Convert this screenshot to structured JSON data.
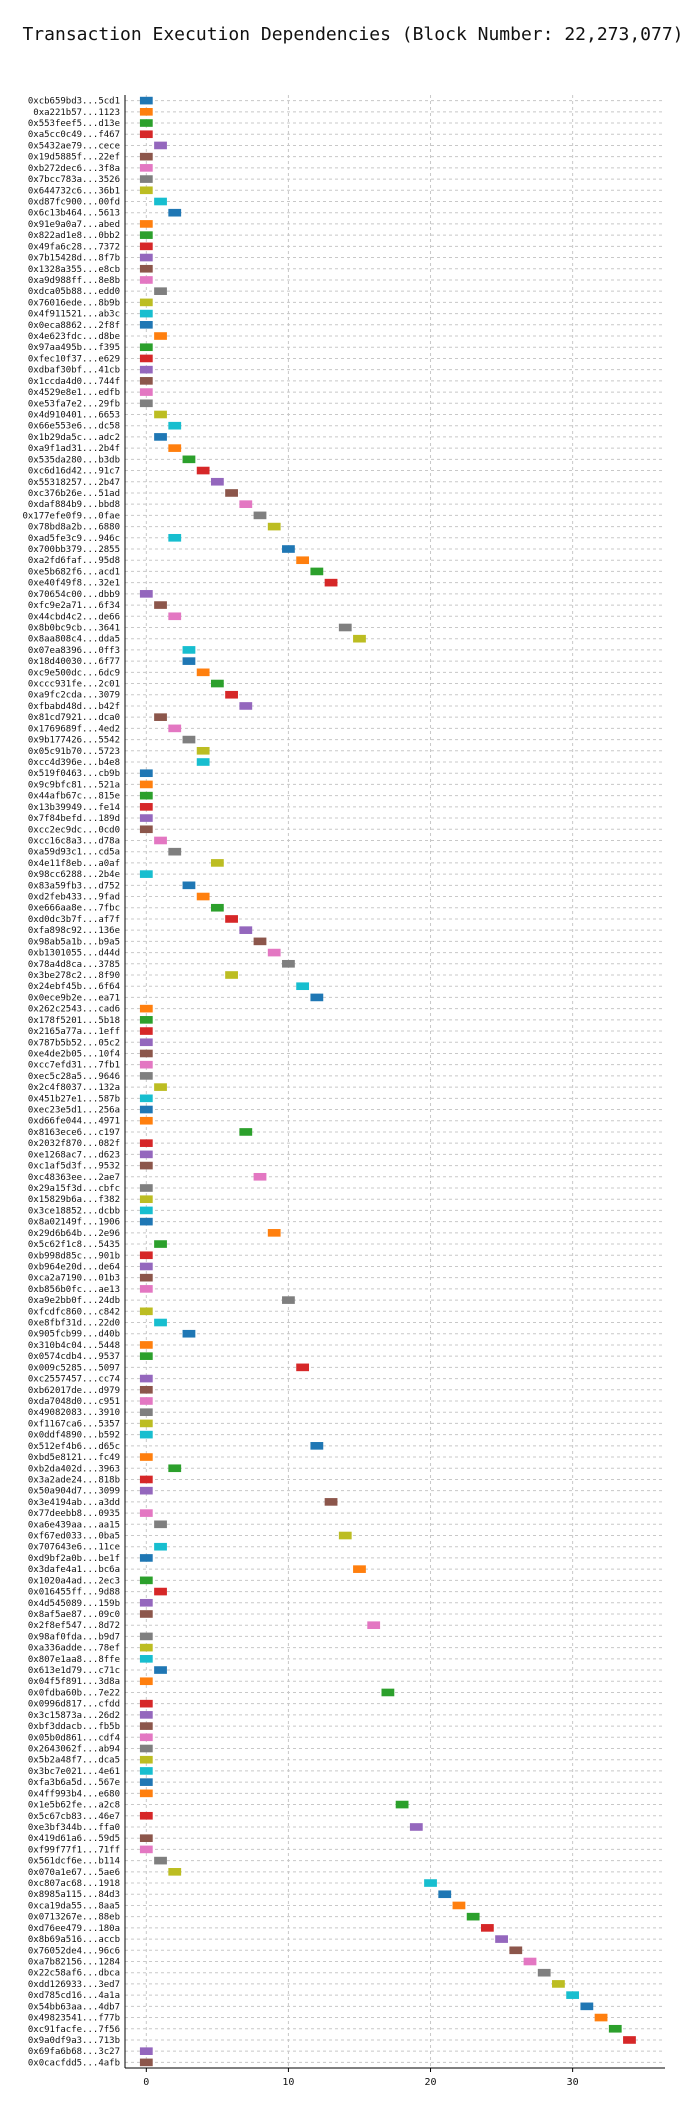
{
  "chart_data": {
    "type": "gantt",
    "title": "Transaction Execution Dependencies (Block Number: 22,273,077)",
    "xlabel": "",
    "ylabel": "",
    "xlim": [
      -1.5,
      36.5
    ],
    "xticks": [
      0,
      10,
      20,
      30
    ],
    "grid": {
      "x": true,
      "y": true,
      "style": "dashed"
    },
    "bar_width": 0.9,
    "palette": [
      "#1f77b4",
      "#ff7f0e",
      "#2ca02c",
      "#d62728",
      "#9467bd",
      "#8c564b",
      "#e377c2",
      "#7f7f7f",
      "#bcbd22",
      "#17becf"
    ],
    "transactions": [
      [
        "0xcb659bd3...5cd1",
        0,
        0
      ],
      [
        "0xa221b57...1123",
        0,
        1
      ],
      [
        "0x553feef5...d13e",
        0,
        2
      ],
      [
        "0xa5cc0c49...f467",
        0,
        3
      ],
      [
        "0x5432ae79...cece",
        1,
        4
      ],
      [
        "0x19d5885f...22ef",
        0,
        5
      ],
      [
        "0xb272dec6...3f8a",
        0,
        6
      ],
      [
        "0x7bcc783a...3526",
        0,
        7
      ],
      [
        "0x644732c6...36b1",
        0,
        8
      ],
      [
        "0xd87fc900...00fd",
        1,
        9
      ],
      [
        "0x6c13b464...5613",
        2,
        0
      ],
      [
        "0x91e9a0a7...abed",
        0,
        1
      ],
      [
        "0x822ad1e8...0bb2",
        0,
        2
      ],
      [
        "0x49fa6c28...7372",
        0,
        3
      ],
      [
        "0x7b15428d...8f7b",
        0,
        4
      ],
      [
        "0x1328a355...e8cb",
        0,
        5
      ],
      [
        "0xa9d988ff...8e8b",
        0,
        6
      ],
      [
        "0xdca05b88...edd0",
        1,
        7
      ],
      [
        "0x76016ede...8b9b",
        0,
        8
      ],
      [
        "0x4f911521...ab3c",
        0,
        9
      ],
      [
        "0x0eca8862...2f8f",
        0,
        0
      ],
      [
        "0x4e623fdc...d8be",
        1,
        1
      ],
      [
        "0x97aa495b...f395",
        0,
        2
      ],
      [
        "0xfec10f37...e629",
        0,
        3
      ],
      [
        "0xdbaf30bf...41cb",
        0,
        4
      ],
      [
        "0x1ccda4d0...744f",
        0,
        5
      ],
      [
        "0x4529e8e1...edfb",
        0,
        6
      ],
      [
        "0xe53fa7e2...29fb",
        0,
        7
      ],
      [
        "0x4d910401...6653",
        1,
        8
      ],
      [
        "0x66e553e6...dc58",
        2,
        9
      ],
      [
        "0x1b29da5c...adc2",
        1,
        0
      ],
      [
        "0xa9f1ad31...2b4f",
        2,
        1
      ],
      [
        "0x535da280...b3db",
        3,
        2
      ],
      [
        "0xc6d16d42...91c7",
        4,
        3
      ],
      [
        "0x55318257...2b47",
        5,
        4
      ],
      [
        "0xc376b26e...51ad",
        6,
        5
      ],
      [
        "0xdaf884b9...bbd8",
        7,
        6
      ],
      [
        "0x177efe0f9...0fae",
        8,
        7
      ],
      [
        "0x78bd8a2b...6880",
        9,
        8
      ],
      [
        "0xad5fe3c9...946c",
        2,
        9
      ],
      [
        "0x700bb379...2855",
        10,
        0
      ],
      [
        "0xa2fd6faf...95d8",
        11,
        1
      ],
      [
        "0xe5b682f6...acd1",
        12,
        2
      ],
      [
        "0xe40f49f8...32e1",
        13,
        3
      ],
      [
        "0x70654c00...dbb9",
        0,
        4
      ],
      [
        "0xfc9e2a71...6f34",
        1,
        5
      ],
      [
        "0x44cbd4c2...de66",
        2,
        6
      ],
      [
        "0x8b0bc9cb...3641",
        14,
        7
      ],
      [
        "0x8aa808c4...dda5",
        15,
        8
      ],
      [
        "0x07ea8396...0ff3",
        3,
        9
      ],
      [
        "0x18d40030...6f77",
        3,
        0
      ],
      [
        "0xc9e500dc...6dc9",
        4,
        1
      ],
      [
        "0xccc931fe...2c01",
        5,
        2
      ],
      [
        "0xa9fc2cda...3079",
        6,
        3
      ],
      [
        "0xfbabd48d...b42f",
        7,
        4
      ],
      [
        "0x81cd7921...dca0",
        1,
        5
      ],
      [
        "0x1769689f...4ed2",
        2,
        6
      ],
      [
        "0x9b177426...5542",
        3,
        7
      ],
      [
        "0x05c91b70...5723",
        4,
        8
      ],
      [
        "0xcc4d396e...b4e8",
        4,
        9
      ],
      [
        "0x519f0463...cb9b",
        0,
        0
      ],
      [
        "0x9c9bfc81...521a",
        0,
        1
      ],
      [
        "0x44afb67c...815e",
        0,
        2
      ],
      [
        "0x13b39949...fe14",
        0,
        3
      ],
      [
        "0x7f84befd...189d",
        0,
        4
      ],
      [
        "0xcc2ec9dc...0cd0",
        0,
        5
      ],
      [
        "0xcc16c8a3...d78a",
        1,
        6
      ],
      [
        "0xa59d93c1...cd5a",
        2,
        7
      ],
      [
        "0x4e11f8eb...a0af",
        5,
        8
      ],
      [
        "0x98cc6288...2b4e",
        0,
        9
      ],
      [
        "0x83a59fb3...d752",
        3,
        0
      ],
      [
        "0xd2feb433...9fad",
        4,
        1
      ],
      [
        "0xe666aa8e...7fbc",
        5,
        2
      ],
      [
        "0xd0dc3b7f...af7f",
        6,
        3
      ],
      [
        "0xfa898c92...136e",
        7,
        4
      ],
      [
        "0x98ab5a1b...b9a5",
        8,
        5
      ],
      [
        "0xb1301055...d44d",
        9,
        6
      ],
      [
        "0x78a4d8ca...3785",
        10,
        7
      ],
      [
        "0x3be278c2...8f90",
        6,
        8
      ],
      [
        "0x24ebf45b...6f64",
        11,
        9
      ],
      [
        "0x0ece9b2e...ea71",
        12,
        0
      ],
      [
        "0x262c2543...cad6",
        0,
        1
      ],
      [
        "0x178f5201...5b18",
        0,
        2
      ],
      [
        "0x2165a77a...1eff",
        0,
        3
      ],
      [
        "0x787b5b52...05c2",
        0,
        4
      ],
      [
        "0xe4de2b05...10f4",
        0,
        5
      ],
      [
        "0xcc7efd31...7fb1",
        0,
        6
      ],
      [
        "0xec5c28a5...9646",
        0,
        7
      ],
      [
        "0x2c4f8037...132a",
        1,
        8
      ],
      [
        "0x451b27e1...587b",
        0,
        9
      ],
      [
        "0xec23e5d1...256a",
        0,
        0
      ],
      [
        "0xd66fe044...4971",
        0,
        1
      ],
      [
        "0x8163ece6...c197",
        7,
        2
      ],
      [
        "0x2032f870...082f",
        0,
        3
      ],
      [
        "0xe1268ac7...d623",
        0,
        4
      ],
      [
        "0xc1af5d3f...9532",
        0,
        5
      ],
      [
        "0xc48363ee...2ae7",
        8,
        6
      ],
      [
        "0x29a15f3d...cbfc",
        0,
        7
      ],
      [
        "0x15829b6a...f382",
        0,
        8
      ],
      [
        "0x3ce18852...dcbb",
        0,
        9
      ],
      [
        "0x8a02149f...1906",
        0,
        0
      ],
      [
        "0x29d6b64b...2e96",
        9,
        1
      ],
      [
        "0x5c62f1c8...5435",
        1,
        2
      ],
      [
        "0xb998d85c...901b",
        0,
        3
      ],
      [
        "0xb964e20d...de64",
        0,
        4
      ],
      [
        "0xca2a7190...01b3",
        0,
        5
      ],
      [
        "0xb856b0fc...ae13",
        0,
        6
      ],
      [
        "0xa9e2bb0f...24db",
        10,
        7
      ],
      [
        "0xfcdfc860...c842",
        0,
        8
      ],
      [
        "0xe8fbf31d...22d0",
        1,
        9
      ],
      [
        "0x905fcb99...d40b",
        3,
        0
      ],
      [
        "0x310b4c04...5448",
        0,
        1
      ],
      [
        "0x0574cdb4...9537",
        0,
        2
      ],
      [
        "0x009c5285...5097",
        11,
        3
      ],
      [
        "0xc2557457...cc74",
        0,
        4
      ],
      [
        "0xb62017de...d979",
        0,
        5
      ],
      [
        "0xda7048d0...c951",
        0,
        6
      ],
      [
        "0x49082083...3910",
        0,
        7
      ],
      [
        "0xf1167ca6...5357",
        0,
        8
      ],
      [
        "0x0ddf4890...b592",
        0,
        9
      ],
      [
        "0x512ef4b6...d65c",
        12,
        0
      ],
      [
        "0xbd5e8121...fc49",
        0,
        1
      ],
      [
        "0xb2da402d...3963",
        2,
        2
      ],
      [
        "0x3a2ade24...818b",
        0,
        3
      ],
      [
        "0x50a904d7...3099",
        0,
        4
      ],
      [
        "0x3e4194ab...a3dd",
        13,
        5
      ],
      [
        "0x77deebb8...0935",
        0,
        6
      ],
      [
        "0xa6e439aa...aa15",
        1,
        7
      ],
      [
        "0xf67ed033...0ba5",
        14,
        8
      ],
      [
        "0x707643e6...11ce",
        1,
        9
      ],
      [
        "0xd9bf2a0b...be1f",
        0,
        0
      ],
      [
        "0x3dafe4a1...bc6a",
        15,
        1
      ],
      [
        "0x1020a4ad...2ec3",
        0,
        2
      ],
      [
        "0x016455ff...9d88",
        1,
        3
      ],
      [
        "0x4d545089...159b",
        0,
        4
      ],
      [
        "0x8af5ae87...09c0",
        0,
        5
      ],
      [
        "0x2f8ef547...8d72",
        16,
        6
      ],
      [
        "0x98af0fda...b9d7",
        0,
        7
      ],
      [
        "0xa336adde...78ef",
        0,
        8
      ],
      [
        "0x807e1aa8...8ffe",
        0,
        9
      ],
      [
        "0x613e1d79...c71c",
        1,
        0
      ],
      [
        "0x04f5f891...3d8a",
        0,
        1
      ],
      [
        "0x0fdba60b...7e22",
        17,
        2
      ],
      [
        "0x0996d817...cfdd",
        0,
        3
      ],
      [
        "0x3c15873a...26d2",
        0,
        4
      ],
      [
        "0xbf3ddacb...fb5b",
        0,
        5
      ],
      [
        "0x05b0d861...cdf4",
        0,
        6
      ],
      [
        "0x2643062f...ab94",
        0,
        7
      ],
      [
        "0x5b2a48f7...dca5",
        0,
        8
      ],
      [
        "0x3bc7e021...4e61",
        0,
        9
      ],
      [
        "0xfa3b6a5d...567e",
        0,
        0
      ],
      [
        "0x4ff993b4...e680",
        0,
        1
      ],
      [
        "0x1e5b62fe...a2c8",
        18,
        2
      ],
      [
        "0x5c67cb83...46e7",
        0,
        3
      ],
      [
        "0xe3bf344b...ffa0",
        19,
        4
      ],
      [
        "0x419d61a6...59d5",
        0,
        5
      ],
      [
        "0xf99f77f1...71ff",
        0,
        6
      ],
      [
        "0x561dcf6e...b114",
        1,
        7
      ],
      [
        "0x070a1e67...5ae6",
        2,
        8
      ],
      [
        "0xc807ac68...1918",
        20,
        9
      ],
      [
        "0x8985a115...84d3",
        21,
        0
      ],
      [
        "0xca19da55...8aa5",
        22,
        1
      ],
      [
        "0x0713267e...88eb",
        23,
        2
      ],
      [
        "0xd76ee479...180a",
        24,
        3
      ],
      [
        "0x8b69a516...accb",
        25,
        4
      ],
      [
        "0x76052de4...96c6",
        26,
        5
      ],
      [
        "0xa7b82156...1284",
        27,
        6
      ],
      [
        "0x22c58af6...dbca",
        28,
        7
      ],
      [
        "0xdd126933...3ed7",
        29,
        8
      ],
      [
        "0xd785cd16...4a1a",
        30,
        9
      ],
      [
        "0x54bb63aa...4db7",
        31,
        0
      ],
      [
        "0x49823541...f77b",
        32,
        1
      ],
      [
        "0xc91facfe...7f56",
        33,
        2
      ],
      [
        "0x9a0df9a3...713b",
        34,
        3
      ],
      [
        "0x69fa6b68...3c27",
        0,
        4
      ],
      [
        "0x0cacfdd5...4afb",
        0,
        5
      ]
    ]
  }
}
